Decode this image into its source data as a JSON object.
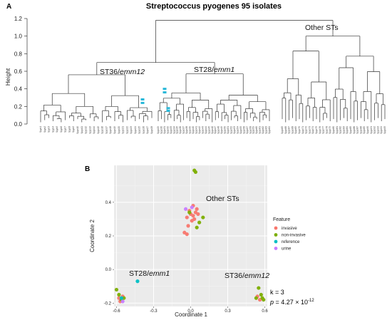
{
  "panel_a": {
    "label": "A",
    "title": "Streptococcus pyogenes 95 isolates",
    "ylabel": "Height",
    "yticks": [
      "0.0",
      "0.2",
      "0.4",
      "0.6",
      "0.8",
      "1.0",
      "1.2"
    ],
    "clusters": {
      "st36_prefix": "ST36/",
      "st36_gene": "emm12",
      "st28_prefix": "ST28/",
      "st28_gene": "emm1",
      "other": "Other STs"
    }
  },
  "panel_b": {
    "label": "B",
    "xlabel": "Coordinate 1",
    "ylabel": "Coordinate 2",
    "xticks": [
      "-0.6",
      "-0.3",
      "0.0",
      "0.3",
      "0.6"
    ],
    "yticks": [
      "0.4",
      "0.2",
      "0.0",
      "-0.2"
    ],
    "clusters": {
      "other": "Other STs",
      "st28_prefix": "ST28/",
      "st28_gene": "emm1",
      "st36_prefix": "ST36/",
      "st36_gene": "emm12"
    },
    "legend": {
      "title": "Feature",
      "items": [
        {
          "label": "invasive",
          "color": "#F8766D"
        },
        {
          "label": "non-invasive",
          "color": "#7CAE00"
        },
        {
          "label": "reference",
          "color": "#00BFC4"
        },
        {
          "label": "urine",
          "color": "#C77CFF"
        }
      ]
    },
    "stats": {
      "k": "k = 3",
      "p_prefix": "p",
      "p_value": " = 4.27 × 10",
      "p_exp": "-12"
    }
  },
  "chart_data": [
    {
      "type": "dendrogram",
      "title": "Streptococcus pyogenes 95 isolates",
      "ylabel": "Height",
      "ylim": [
        0,
        1.2
      ],
      "groups": [
        {
          "name": "ST36/emm12",
          "merge_height": 0.56
        },
        {
          "name": "ST28/emm1",
          "merge_height": 0.57
        },
        {
          "name": "Other STs",
          "merge_height": 1.0
        }
      ],
      "root_height": 1.18
    },
    {
      "type": "scatter",
      "xlabel": "Coordinate 1",
      "ylabel": "Coordinate 2",
      "xlim": [
        -0.62,
        0.62
      ],
      "ylim": [
        -0.22,
        0.62
      ],
      "series": [
        {
          "name": "invasive",
          "points": [
            [
              0.02,
              0.38
            ],
            [
              -0.01,
              0.35
            ],
            [
              0.04,
              0.34
            ],
            [
              0.0,
              0.33
            ],
            [
              0.05,
              0.36
            ],
            [
              -0.03,
              0.31
            ],
            [
              0.03,
              0.3
            ],
            [
              -0.02,
              0.26
            ],
            [
              -0.05,
              0.22
            ],
            [
              -0.03,
              0.21
            ],
            [
              0.02,
              0.32
            ],
            [
              0.06,
              0.33
            ],
            [
              0.01,
              0.29
            ],
            [
              -0.58,
              -0.17
            ],
            [
              -0.55,
              -0.16
            ],
            [
              -0.57,
              -0.19
            ],
            [
              0.54,
              -0.16
            ],
            [
              0.56,
              -0.18
            ]
          ]
        },
        {
          "name": "non-invasive",
          "points": [
            [
              0.03,
              0.59
            ],
            [
              0.04,
              0.58
            ],
            [
              0.1,
              0.31
            ],
            [
              0.07,
              0.28
            ],
            [
              0.05,
              0.25
            ],
            [
              -0.01,
              0.34
            ],
            [
              -0.6,
              -0.12
            ],
            [
              -0.58,
              -0.15
            ],
            [
              -0.56,
              -0.18
            ],
            [
              -0.54,
              -0.17
            ],
            [
              0.55,
              -0.11
            ],
            [
              0.57,
              -0.15
            ],
            [
              0.59,
              -0.18
            ],
            [
              0.53,
              -0.17
            ],
            [
              0.58,
              -0.17
            ]
          ]
        },
        {
          "name": "reference",
          "points": [
            [
              -0.43,
              -0.07
            ],
            [
              -0.56,
              -0.17
            ]
          ]
        },
        {
          "name": "urine",
          "points": [
            [
              0.01,
              0.37
            ],
            [
              -0.04,
              0.36
            ],
            [
              -0.55,
              -0.19
            ]
          ]
        }
      ]
    }
  ]
}
